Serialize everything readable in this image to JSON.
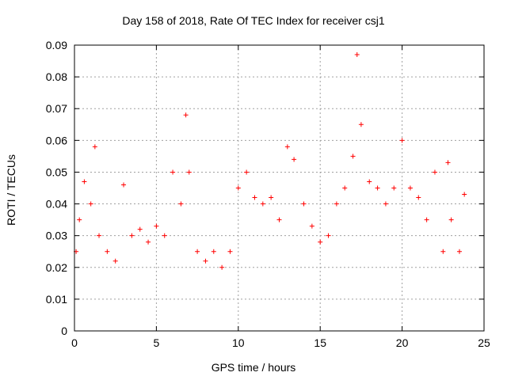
{
  "chart_data": {
    "type": "scatter",
    "title": "Day 158 of 2018, Rate Of TEC Index for receiver csj1",
    "xlabel": "GPS time / hours",
    "ylabel": "ROTI / TECUs",
    "xlim": [
      0,
      25
    ],
    "ylim": [
      0,
      0.09
    ],
    "xticks": [
      "0",
      "5",
      "10",
      "15",
      "20",
      "25"
    ],
    "yticks": [
      "0",
      "0.01",
      "0.02",
      "0.03",
      "0.04",
      "0.05",
      "0.06",
      "0.07",
      "0.08",
      "0.09"
    ],
    "grid": true,
    "marker": "+",
    "color": "#ff0000",
    "series": [
      {
        "name": "ROTI",
        "x": [
          0.1,
          0.3,
          0.6,
          1.0,
          1.25,
          1.5,
          2.0,
          2.5,
          3.0,
          3.5,
          4.0,
          4.5,
          5.0,
          5.5,
          6.0,
          6.5,
          6.8,
          7.0,
          7.5,
          8.0,
          8.5,
          9.0,
          9.5,
          10.0,
          10.5,
          11.0,
          11.5,
          12.0,
          12.5,
          13.0,
          13.4,
          14.0,
          14.5,
          15.0,
          15.5,
          16.0,
          16.5,
          17.0,
          17.25,
          17.5,
          18.0,
          18.5,
          19.0,
          19.5,
          20.0,
          20.5,
          21.0,
          21.5,
          22.0,
          22.5,
          22.8,
          23.0,
          23.5,
          23.8
        ],
        "y": [
          0.025,
          0.035,
          0.047,
          0.04,
          0.058,
          0.03,
          0.025,
          0.022,
          0.046,
          0.03,
          0.032,
          0.028,
          0.033,
          0.03,
          0.05,
          0.04,
          0.068,
          0.05,
          0.025,
          0.022,
          0.025,
          0.02,
          0.025,
          0.045,
          0.05,
          0.042,
          0.04,
          0.042,
          0.035,
          0.058,
          0.054,
          0.04,
          0.033,
          0.028,
          0.03,
          0.04,
          0.045,
          0.055,
          0.087,
          0.065,
          0.047,
          0.045,
          0.04,
          0.045,
          0.06,
          0.045,
          0.042,
          0.035,
          0.05,
          0.025,
          0.053,
          0.035,
          0.025,
          0.043
        ]
      }
    ]
  }
}
